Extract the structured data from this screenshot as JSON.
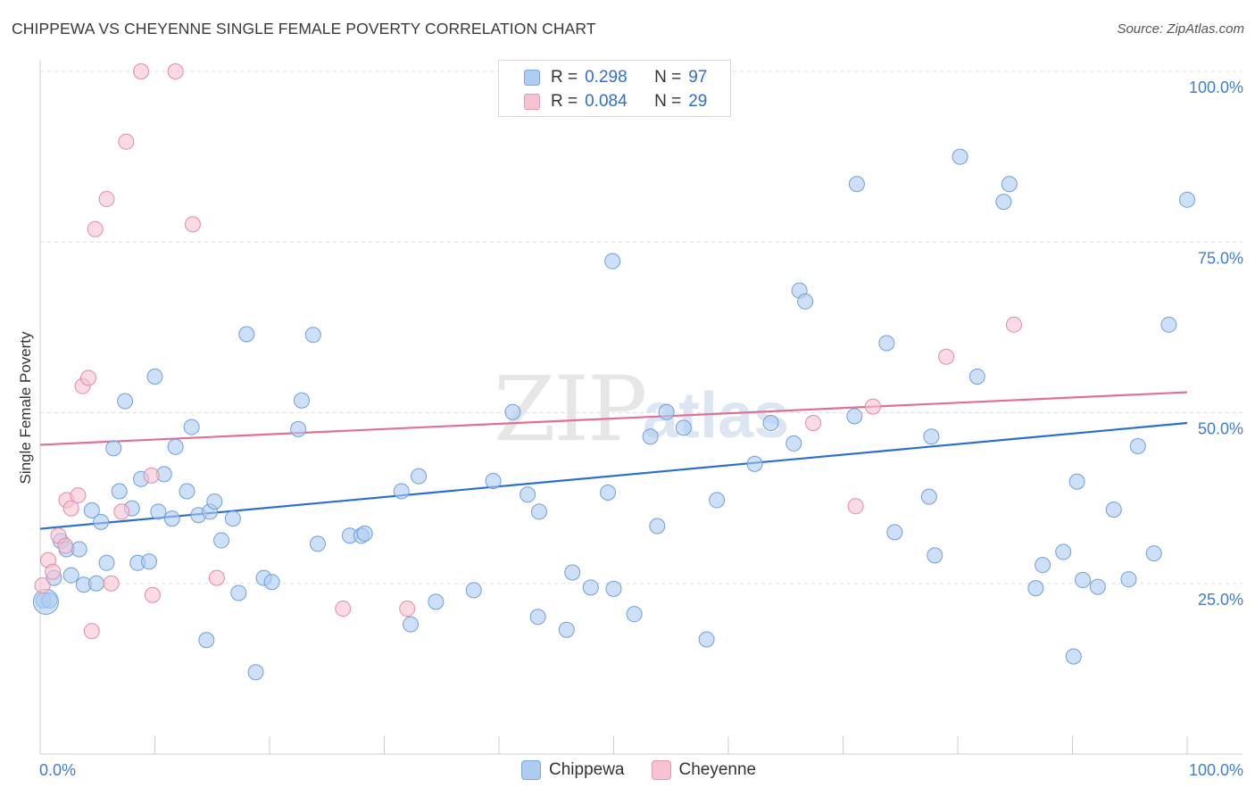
{
  "title": "CHIPPEWA VS CHEYENNE SINGLE FEMALE POVERTY CORRELATION CHART",
  "source": "Source: ZipAtlas.com",
  "watermark": {
    "part1": "ZIP",
    "part2": "atlas"
  },
  "legend": {
    "rows": [
      {
        "r_label": "R =",
        "r_value": "0.298",
        "n_label": "N =",
        "n_value": "97",
        "color": "#aecbf2",
        "border": "#7aa6e0"
      },
      {
        "r_label": "R =",
        "r_value": "0.084",
        "n_label": "N =",
        "n_value": "29",
        "color": "#f7c3d2",
        "border": "#e896ad"
      }
    ],
    "bottom": [
      "Chippewa",
      "Cheyenne"
    ]
  },
  "chart_data": {
    "type": "scatter",
    "title": "CHIPPEWA VS CHEYENNE SINGLE FEMALE POVERTY CORRELATION CHART",
    "xlabel": "",
    "ylabel": "Single Female Poverty",
    "xlim": [
      0,
      100
    ],
    "ylim": [
      0,
      100
    ],
    "x_tick_labels": [
      "0.0%",
      "100.0%"
    ],
    "y_tick_labels": [
      "25.0%",
      "50.0%",
      "75.0%",
      "100.0%"
    ],
    "y_ticks": [
      25,
      50,
      75,
      100
    ],
    "grid": true,
    "legend_position": "top-center",
    "series": [
      {
        "name": "Chippewa",
        "color": "#aecbf2",
        "edge": "#6f9fdc",
        "trend": {
          "color": "#2a6fcf",
          "x": [
            0,
            100
          ],
          "y": [
            33.0,
            48.5
          ]
        },
        "points": [
          [
            0.3,
            22.5
          ],
          [
            0.8,
            22.5
          ],
          [
            1.2,
            25.8
          ],
          [
            1.8,
            31.2
          ],
          [
            2.3,
            30.0
          ],
          [
            2.7,
            26.2
          ],
          [
            3.4,
            30.0
          ],
          [
            3.8,
            24.8
          ],
          [
            4.5,
            35.7
          ],
          [
            4.9,
            25.0
          ],
          [
            5.3,
            34.0
          ],
          [
            5.8,
            28.0
          ],
          [
            6.4,
            44.8
          ],
          [
            6.9,
            38.5
          ],
          [
            7.4,
            51.7
          ],
          [
            8.0,
            36.0
          ],
          [
            8.5,
            28.0
          ],
          [
            8.8,
            40.3
          ],
          [
            9.5,
            28.2
          ],
          [
            10.0,
            55.3
          ],
          [
            10.3,
            35.5
          ],
          [
            10.8,
            41.0
          ],
          [
            11.5,
            34.5
          ],
          [
            11.8,
            45.0
          ],
          [
            12.8,
            38.5
          ],
          [
            13.2,
            47.9
          ],
          [
            13.8,
            35.0
          ],
          [
            14.5,
            16.7
          ],
          [
            14.8,
            35.5
          ],
          [
            15.2,
            37.0
          ],
          [
            15.8,
            31.3
          ],
          [
            16.8,
            34.5
          ],
          [
            17.3,
            23.6
          ],
          [
            18.0,
            61.5
          ],
          [
            18.8,
            12.0
          ],
          [
            19.5,
            25.8
          ],
          [
            20.2,
            25.2
          ],
          [
            22.5,
            47.6
          ],
          [
            22.8,
            51.8
          ],
          [
            23.8,
            61.4
          ],
          [
            24.2,
            30.8
          ],
          [
            27.0,
            32.0
          ],
          [
            28.0,
            32.0
          ],
          [
            28.3,
            32.3
          ],
          [
            31.5,
            38.5
          ],
          [
            32.3,
            19.0
          ],
          [
            33.0,
            40.7
          ],
          [
            34.5,
            22.3
          ],
          [
            37.8,
            24.0
          ],
          [
            39.5,
            40.0
          ],
          [
            41.2,
            50.1
          ],
          [
            42.5,
            38.0
          ],
          [
            43.4,
            20.1
          ],
          [
            43.5,
            35.5
          ],
          [
            46.4,
            26.6
          ],
          [
            45.9,
            18.2
          ],
          [
            48.0,
            24.4
          ],
          [
            49.5,
            38.3
          ],
          [
            50.0,
            24.2
          ],
          [
            49.9,
            72.2
          ],
          [
            51.8,
            20.5
          ],
          [
            53.2,
            46.5
          ],
          [
            53.8,
            33.4
          ],
          [
            54.6,
            50.1
          ],
          [
            56.1,
            47.8
          ],
          [
            58.1,
            16.8
          ],
          [
            59.0,
            37.2
          ],
          [
            62.3,
            42.5
          ],
          [
            63.7,
            48.5
          ],
          [
            65.7,
            45.5
          ],
          [
            66.2,
            67.9
          ],
          [
            66.7,
            66.3
          ],
          [
            71.2,
            83.5
          ],
          [
            71.0,
            49.5
          ],
          [
            73.8,
            60.2
          ],
          [
            74.5,
            32.5
          ],
          [
            77.5,
            37.7
          ],
          [
            77.7,
            46.5
          ],
          [
            78.0,
            29.1
          ],
          [
            80.2,
            87.5
          ],
          [
            81.7,
            55.3
          ],
          [
            84.0,
            80.9
          ],
          [
            84.5,
            83.5
          ],
          [
            86.8,
            24.3
          ],
          [
            87.4,
            27.7
          ],
          [
            89.2,
            29.6
          ],
          [
            90.1,
            14.3
          ],
          [
            90.4,
            39.9
          ],
          [
            90.9,
            25.5
          ],
          [
            92.2,
            24.5
          ],
          [
            93.6,
            35.8
          ],
          [
            94.9,
            25.6
          ],
          [
            95.7,
            45.1
          ],
          [
            97.1,
            29.4
          ],
          [
            98.4,
            62.9
          ],
          [
            100.0,
            81.2
          ],
          [
            0.5,
            22.3
          ]
        ]
      },
      {
        "name": "Cheyenne",
        "color": "#f7c3d2",
        "edge": "#e48aa6",
        "trend": {
          "color": "#e07096",
          "x": [
            0,
            100
          ],
          "y": [
            45.3,
            53.0
          ]
        },
        "points": [
          [
            0.2,
            24.7
          ],
          [
            0.7,
            28.4
          ],
          [
            1.1,
            26.7
          ],
          [
            1.6,
            32.0
          ],
          [
            2.2,
            30.5
          ],
          [
            2.3,
            37.2
          ],
          [
            2.7,
            36.0
          ],
          [
            3.3,
            37.9
          ],
          [
            3.7,
            53.9
          ],
          [
            4.2,
            55.1
          ],
          [
            4.5,
            18.0
          ],
          [
            4.8,
            76.9
          ],
          [
            5.8,
            81.3
          ],
          [
            6.2,
            25.0
          ],
          [
            7.1,
            35.5
          ],
          [
            7.5,
            89.7
          ],
          [
            8.8,
            100.0
          ],
          [
            9.7,
            40.8
          ],
          [
            9.8,
            23.3
          ],
          [
            11.8,
            100.0
          ],
          [
            13.3,
            77.6
          ],
          [
            15.4,
            25.8
          ],
          [
            26.4,
            21.3
          ],
          [
            32.0,
            21.3
          ],
          [
            67.4,
            48.5
          ],
          [
            71.1,
            36.3
          ],
          [
            72.6,
            50.9
          ],
          [
            79.0,
            58.2
          ],
          [
            84.9,
            62.9
          ]
        ]
      }
    ]
  }
}
